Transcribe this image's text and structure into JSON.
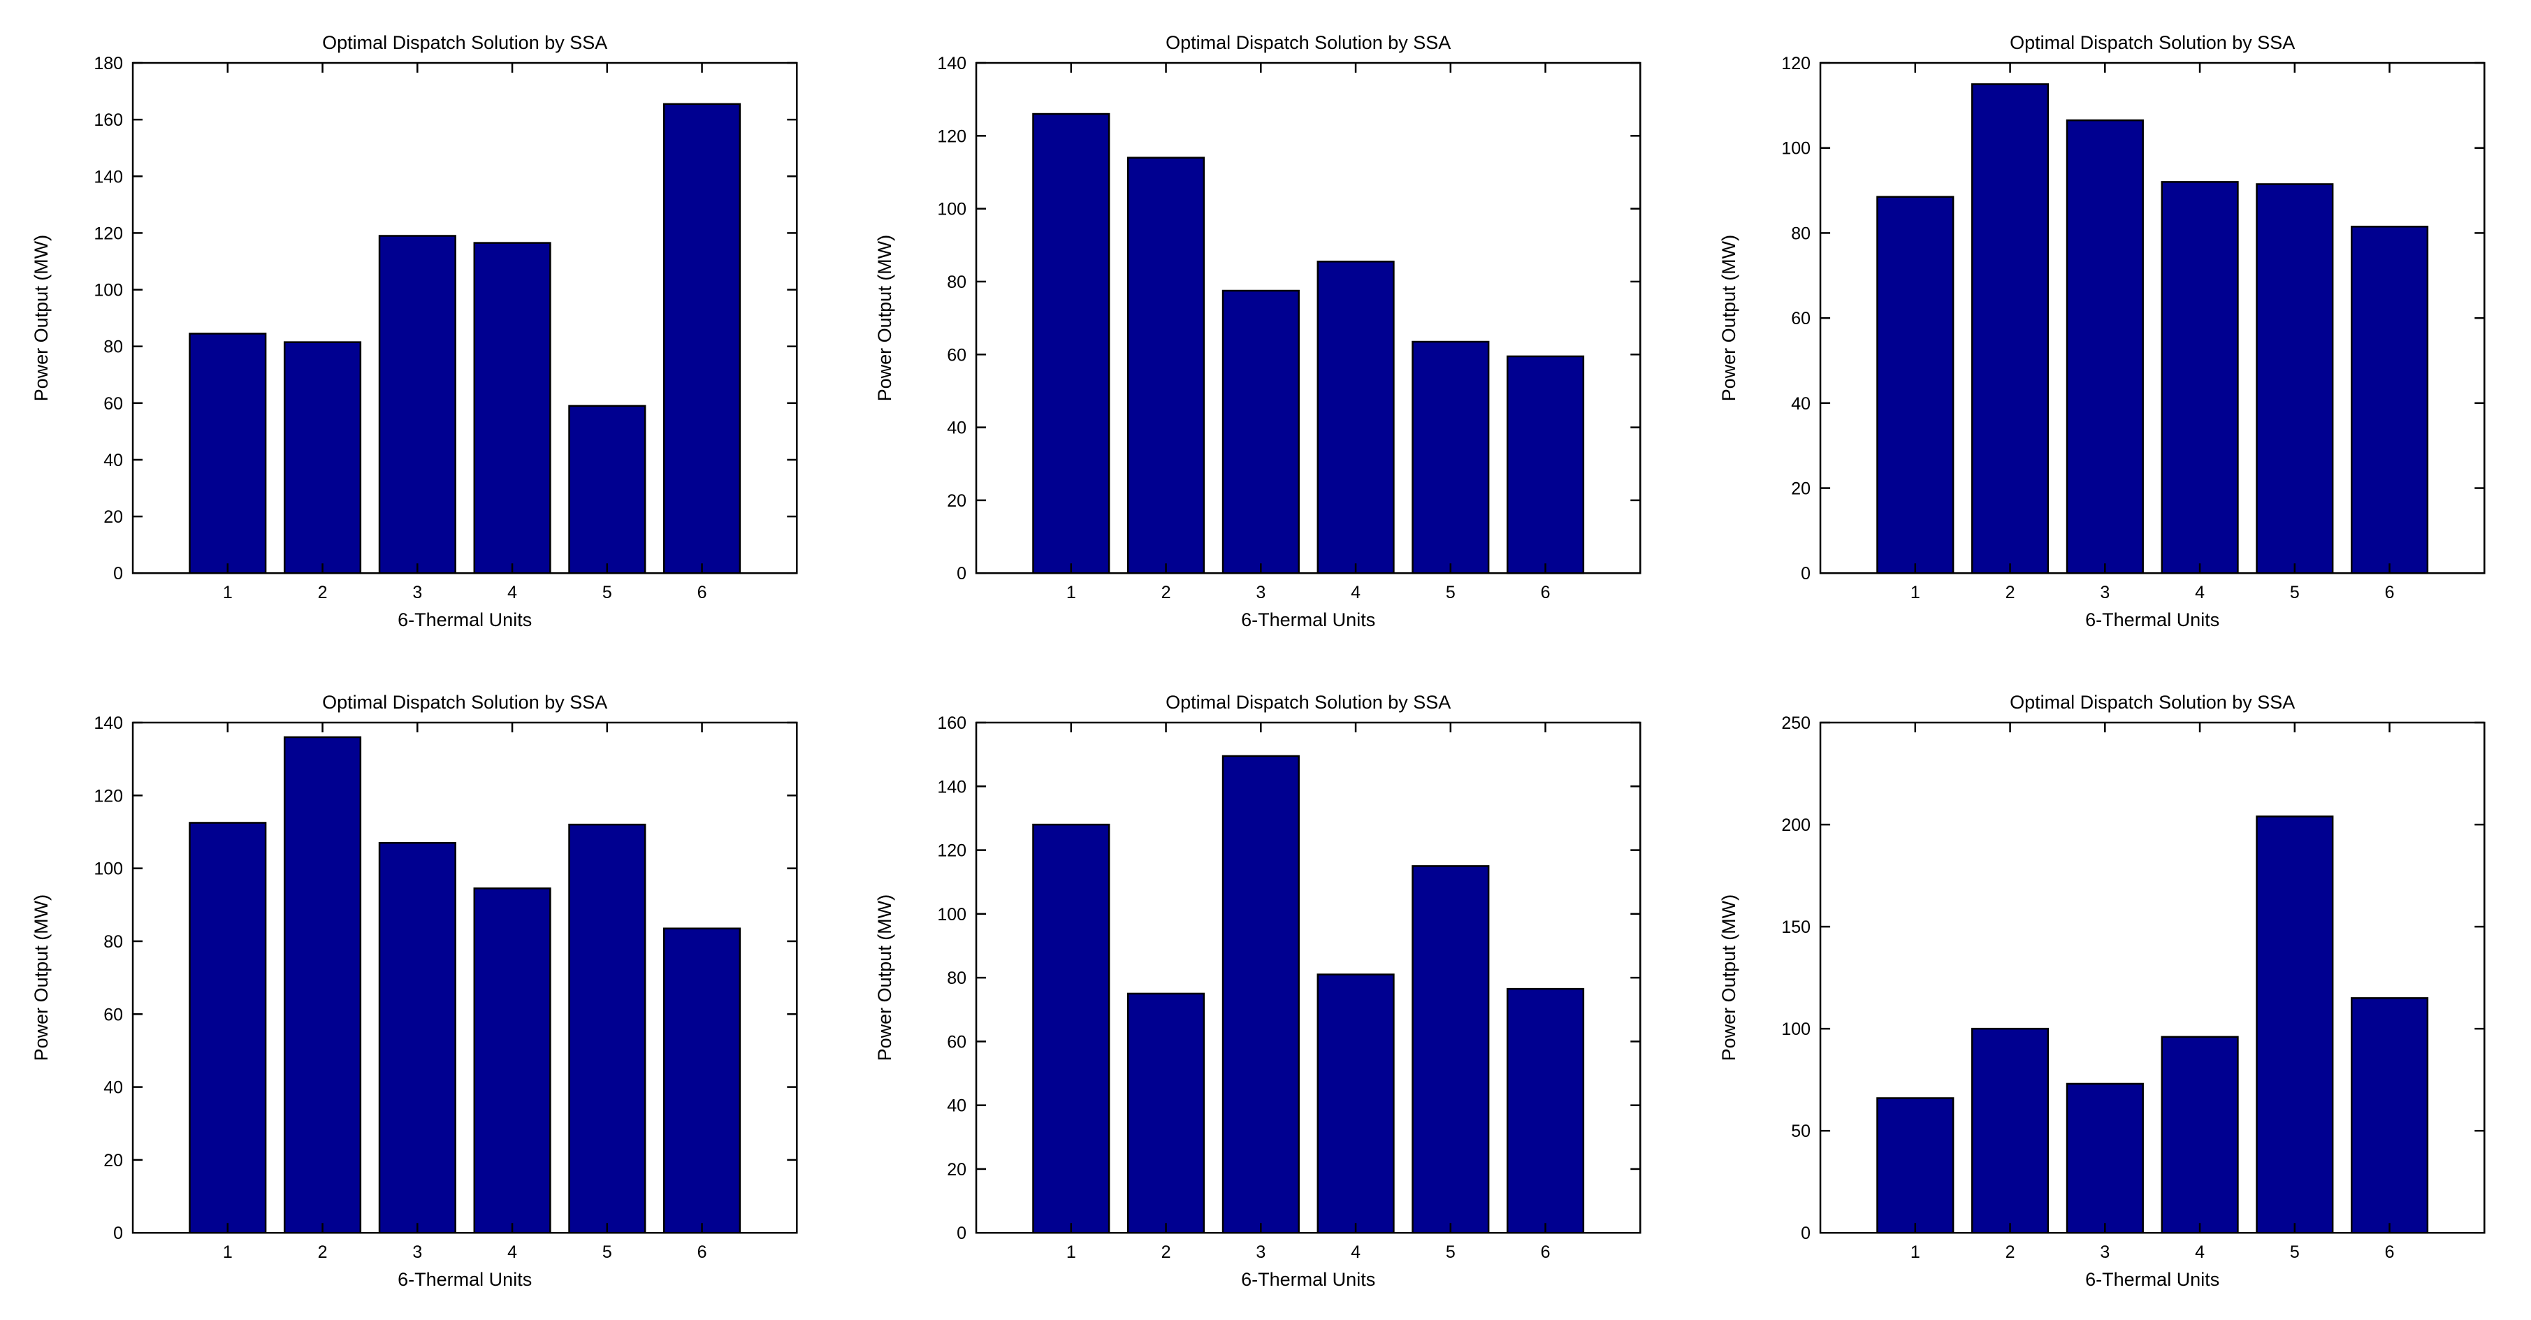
{
  "page": {
    "background_color": "#ffffff",
    "description": "Grid of six MATLAB-style bar charts, 2 rows by 3 columns"
  },
  "style": {
    "bar_color": "#000090",
    "bar_edge_color": "#000000",
    "axis_color": "#000000",
    "text_color": "#000000"
  },
  "chart_data": [
    {
      "type": "bar",
      "grid_position": "row1-col1",
      "title": "Optimal Dispatch Solution by SSA",
      "xlabel": "6-Thermal Units",
      "ylabel": "Power Output (MW)",
      "categories": [
        "1",
        "2",
        "3",
        "4",
        "5",
        "6"
      ],
      "values": [
        84.5,
        81.5,
        119,
        116.5,
        59,
        165.5
      ],
      "ylim": [
        0,
        180
      ],
      "ytick_step": 20,
      "xlim": [
        0,
        7
      ],
      "bar_width": 0.8,
      "grid": false,
      "legend": "none"
    },
    {
      "type": "bar",
      "grid_position": "row1-col2",
      "title": "Optimal Dispatch Solution by SSA",
      "xlabel": "6-Thermal Units",
      "ylabel": "Power Output (MW)",
      "categories": [
        "1",
        "2",
        "3",
        "4",
        "5",
        "6"
      ],
      "values": [
        126,
        114,
        77.5,
        85.5,
        63.5,
        59.5
      ],
      "ylim": [
        0,
        140
      ],
      "ytick_step": 20,
      "xlim": [
        0,
        7
      ],
      "bar_width": 0.8,
      "grid": false,
      "legend": "none"
    },
    {
      "type": "bar",
      "grid_position": "row1-col3",
      "title": "Optimal Dispatch Solution by SSA",
      "xlabel": "6-Thermal Units",
      "ylabel": "Power Output (MW)",
      "categories": [
        "1",
        "2",
        "3",
        "4",
        "5",
        "6"
      ],
      "values": [
        88.5,
        115,
        106.5,
        92,
        91.5,
        81.5
      ],
      "ylim": [
        0,
        120
      ],
      "ytick_step": 20,
      "xlim": [
        0,
        7
      ],
      "bar_width": 0.8,
      "grid": false,
      "legend": "none"
    },
    {
      "type": "bar",
      "grid_position": "row2-col1",
      "title": "Optimal Dispatch Solution by SSA",
      "xlabel": "6-Thermal Units",
      "ylabel": "Power Output (MW)",
      "categories": [
        "1",
        "2",
        "3",
        "4",
        "5",
        "6"
      ],
      "values": [
        112.5,
        136,
        107,
        94.5,
        112,
        83.5
      ],
      "ylim": [
        0,
        140
      ],
      "ytick_step": 20,
      "xlim": [
        0,
        7
      ],
      "bar_width": 0.8,
      "grid": false,
      "legend": "none"
    },
    {
      "type": "bar",
      "grid_position": "row2-col2",
      "title": "Optimal Dispatch Solution by SSA",
      "xlabel": "6-Thermal Units",
      "ylabel": "Power Output (MW)",
      "categories": [
        "1",
        "2",
        "3",
        "4",
        "5",
        "6"
      ],
      "values": [
        128,
        75,
        149.5,
        81,
        115,
        76.5
      ],
      "ylim": [
        0,
        160
      ],
      "ytick_step": 20,
      "xlim": [
        0,
        7
      ],
      "bar_width": 0.8,
      "grid": false,
      "legend": "none"
    },
    {
      "type": "bar",
      "grid_position": "row2-col3",
      "title": "Optimal Dispatch Solution by SSA",
      "xlabel": "6-Thermal Units",
      "ylabel": "Power Output (MW)",
      "categories": [
        "1",
        "2",
        "3",
        "4",
        "5",
        "6"
      ],
      "values": [
        66,
        100,
        73,
        96,
        204,
        115
      ],
      "ylim": [
        0,
        250
      ],
      "ytick_step": 50,
      "xlim": [
        0,
        7
      ],
      "bar_width": 0.8,
      "grid": false,
      "legend": "none"
    }
  ]
}
